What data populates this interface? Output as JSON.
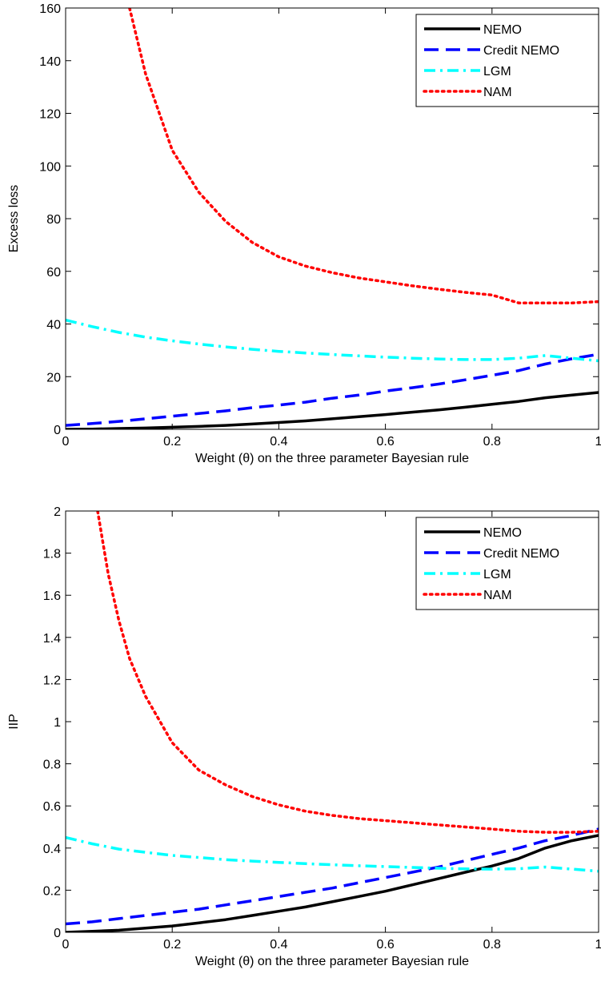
{
  "chart_data": [
    {
      "type": "line",
      "xlabel": "Weight (θ) on the three parameter Bayesian rule",
      "ylabel": "Excess loss",
      "xlim": [
        0,
        1
      ],
      "ylim": [
        0,
        160
      ],
      "xticks": [
        0,
        0.2,
        0.4,
        0.6,
        0.8,
        1
      ],
      "xtick_labels": [
        "0",
        "0.2",
        "0.4",
        "0.6",
        "0.8",
        "1"
      ],
      "yticks": [
        0,
        20,
        40,
        60,
        80,
        100,
        120,
        140,
        160
      ],
      "ytick_labels": [
        "0",
        "20",
        "40",
        "60",
        "80",
        "100",
        "120",
        "140",
        "160"
      ],
      "grid": false,
      "legend_position": "top-right",
      "series": [
        {
          "name": "NEMO",
          "color": "#000000",
          "style": "solid",
          "x": [
            0,
            0.05,
            0.1,
            0.15,
            0.2,
            0.25,
            0.3,
            0.35,
            0.4,
            0.45,
            0.5,
            0.55,
            0.6,
            0.65,
            0.7,
            0.75,
            0.8,
            0.85,
            0.9,
            0.95,
            1.0
          ],
          "y": [
            0,
            0.1,
            0.3,
            0.5,
            0.8,
            1.1,
            1.5,
            2.0,
            2.6,
            3.2,
            4.0,
            4.8,
            5.6,
            6.5,
            7.4,
            8.4,
            9.5,
            10.6,
            12.0,
            13.0,
            14.0
          ]
        },
        {
          "name": "Credit NEMO",
          "color": "#0000ff",
          "style": "dashed",
          "x": [
            0,
            0.05,
            0.1,
            0.15,
            0.2,
            0.25,
            0.3,
            0.35,
            0.4,
            0.45,
            0.5,
            0.55,
            0.6,
            0.65,
            0.7,
            0.75,
            0.8,
            0.85,
            0.9,
            0.95,
            1.0
          ],
          "y": [
            1.5,
            2.2,
            3.0,
            4.0,
            5.0,
            6.0,
            7.0,
            8.2,
            9.2,
            10.3,
            11.8,
            13.0,
            14.5,
            15.8,
            17.2,
            18.8,
            20.5,
            22.3,
            24.8,
            26.8,
            28.5
          ]
        },
        {
          "name": "LGM",
          "color": "#00ffff",
          "style": "dashdot",
          "x": [
            0,
            0.05,
            0.1,
            0.15,
            0.2,
            0.25,
            0.3,
            0.35,
            0.4,
            0.45,
            0.5,
            0.55,
            0.6,
            0.65,
            0.7,
            0.75,
            0.8,
            0.85,
            0.9,
            0.95,
            1.0
          ],
          "y": [
            41.5,
            39.0,
            36.8,
            35.0,
            33.6,
            32.4,
            31.3,
            30.4,
            29.6,
            29.0,
            28.4,
            27.9,
            27.4,
            27.0,
            26.7,
            26.5,
            26.5,
            27.0,
            28.0,
            27.0,
            26.0
          ]
        },
        {
          "name": "NAM",
          "color": "#ff0000",
          "style": "dotted",
          "x": [
            0.12,
            0.15,
            0.2,
            0.25,
            0.3,
            0.35,
            0.4,
            0.45,
            0.5,
            0.55,
            0.6,
            0.65,
            0.7,
            0.75,
            0.8,
            0.85,
            0.9,
            0.95,
            1.0
          ],
          "y": [
            160,
            135,
            106,
            90,
            79,
            71,
            65.5,
            62,
            59.5,
            57.5,
            56,
            54.5,
            53.2,
            52,
            51,
            48,
            48,
            48,
            48.5
          ]
        }
      ]
    },
    {
      "type": "line",
      "xlabel": "Weight (θ) on the three parameter Bayesian rule",
      "ylabel": "IIP",
      "xlim": [
        0,
        1
      ],
      "ylim": [
        0,
        2
      ],
      "xticks": [
        0,
        0.2,
        0.4,
        0.6,
        0.8,
        1
      ],
      "xtick_labels": [
        "0",
        "0.2",
        "0.4",
        "0.6",
        "0.8",
        "1"
      ],
      "yticks": [
        0,
        0.2,
        0.4,
        0.6,
        0.8,
        1,
        1.2,
        1.4,
        1.6,
        1.8,
        2
      ],
      "ytick_labels": [
        "0",
        "0.2",
        "0.4",
        "0.6",
        "0.8",
        "1",
        "1.2",
        "1.4",
        "1.6",
        "1.8",
        "2"
      ],
      "grid": false,
      "legend_position": "top-right",
      "series": [
        {
          "name": "NEMO",
          "color": "#000000",
          "style": "solid",
          "x": [
            0,
            0.05,
            0.1,
            0.15,
            0.2,
            0.25,
            0.3,
            0.35,
            0.4,
            0.45,
            0.5,
            0.55,
            0.6,
            0.65,
            0.7,
            0.75,
            0.8,
            0.85,
            0.9,
            0.95,
            1.0
          ],
          "y": [
            0,
            0.005,
            0.01,
            0.02,
            0.03,
            0.045,
            0.06,
            0.08,
            0.1,
            0.12,
            0.145,
            0.17,
            0.195,
            0.225,
            0.255,
            0.285,
            0.315,
            0.35,
            0.4,
            0.435,
            0.46
          ]
        },
        {
          "name": "Credit NEMO",
          "color": "#0000ff",
          "style": "dashed",
          "x": [
            0,
            0.05,
            0.1,
            0.15,
            0.2,
            0.25,
            0.3,
            0.35,
            0.4,
            0.45,
            0.5,
            0.55,
            0.6,
            0.65,
            0.7,
            0.75,
            0.8,
            0.85,
            0.9,
            0.95,
            1.0
          ],
          "y": [
            0.04,
            0.05,
            0.065,
            0.08,
            0.095,
            0.11,
            0.13,
            0.15,
            0.17,
            0.19,
            0.21,
            0.235,
            0.26,
            0.285,
            0.31,
            0.34,
            0.37,
            0.4,
            0.435,
            0.46,
            0.49
          ]
        },
        {
          "name": "LGM",
          "color": "#00ffff",
          "style": "dashdot",
          "x": [
            0,
            0.05,
            0.1,
            0.15,
            0.2,
            0.25,
            0.3,
            0.35,
            0.4,
            0.45,
            0.5,
            0.55,
            0.6,
            0.65,
            0.7,
            0.75,
            0.8,
            0.85,
            0.9,
            0.95,
            1.0
          ],
          "y": [
            0.45,
            0.42,
            0.395,
            0.38,
            0.365,
            0.355,
            0.345,
            0.338,
            0.332,
            0.326,
            0.321,
            0.316,
            0.312,
            0.308,
            0.304,
            0.301,
            0.3,
            0.302,
            0.31,
            0.3,
            0.29
          ]
        },
        {
          "name": "NAM",
          "color": "#ff0000",
          "style": "dotted",
          "x": [
            0.06,
            0.07,
            0.08,
            0.1,
            0.12,
            0.15,
            0.2,
            0.25,
            0.3,
            0.35,
            0.4,
            0.45,
            0.5,
            0.55,
            0.6,
            0.65,
            0.7,
            0.75,
            0.8,
            0.85,
            0.9,
            0.95,
            1.0
          ],
          "y": [
            2.0,
            1.85,
            1.7,
            1.48,
            1.3,
            1.12,
            0.9,
            0.77,
            0.7,
            0.645,
            0.605,
            0.575,
            0.555,
            0.54,
            0.53,
            0.52,
            0.51,
            0.5,
            0.49,
            0.48,
            0.475,
            0.475,
            0.48
          ]
        }
      ]
    }
  ]
}
